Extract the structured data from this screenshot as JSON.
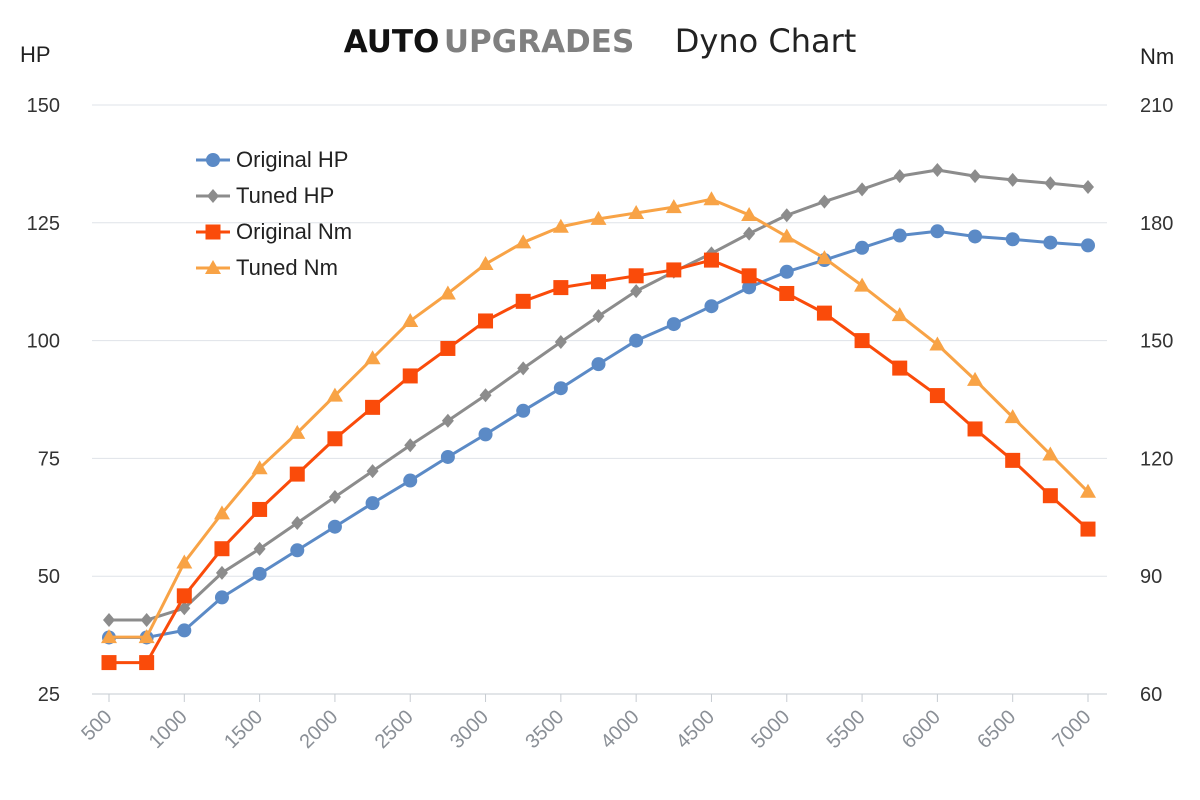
{
  "title": {
    "brand_word1": "AUTO",
    "brand_word2": "UPGRADES",
    "subtitle": "Dyno Chart"
  },
  "chart_data": {
    "type": "line",
    "title": "AUTO UPGRADES Dyno Chart",
    "y_left_label": "HP",
    "y_right_label": "Nm",
    "y_left_lim": [
      25,
      150
    ],
    "y_left_ticks": [
      "25",
      "50",
      "75",
      "100",
      "125",
      "150"
    ],
    "y_right_lim": [
      60,
      210
    ],
    "y_right_ticks": [
      "60",
      "90",
      "120",
      "150",
      "180",
      "210"
    ],
    "x": [
      500,
      750,
      1000,
      1250,
      1500,
      1750,
      2000,
      2250,
      2500,
      2750,
      3000,
      3250,
      3500,
      3750,
      4000,
      4250,
      4500,
      4750,
      5000,
      5250,
      5500,
      5750,
      6000,
      6250,
      6500,
      6750,
      7000
    ],
    "x_tick_labels": [
      "500",
      "1000",
      "1500",
      "2000",
      "2500",
      "3000",
      "3500",
      "4000",
      "4500",
      "5000",
      "5500",
      "6000",
      "6500",
      "7000"
    ],
    "grid": true,
    "legend_position": "top-left",
    "series": [
      {
        "name": "Original HP",
        "axis": "left",
        "marker": "circle",
        "color": "#5b8ac6",
        "values": [
          37,
          37,
          38.5,
          45.5,
          50.5,
          55.5,
          60.5,
          65.5,
          70.3,
          75.3,
          80.1,
          85.1,
          89.9,
          95,
          100,
          103.5,
          107.3,
          111.3,
          114.6,
          117.1,
          119.7,
          122.3,
          123.2,
          122.1,
          121.5,
          120.8,
          120.2
        ]
      },
      {
        "name": "Tuned HP",
        "axis": "left",
        "marker": "diamond",
        "color": "#8c8c8c",
        "values": [
          40.7,
          40.7,
          43.2,
          50.7,
          55.8,
          61.3,
          66.8,
          72.3,
          77.8,
          83,
          88.4,
          94.1,
          99.7,
          105.2,
          110.5,
          114.6,
          118.5,
          122.7,
          126.6,
          129.5,
          132.1,
          134.9,
          136.2,
          134.9,
          134.1,
          133.4,
          132.6
        ]
      },
      {
        "name": "Original Nm",
        "axis": "right",
        "marker": "square",
        "color": "#fa4b0a",
        "values": [
          68,
          68,
          85,
          97,
          107,
          116,
          125,
          133,
          141,
          148,
          155,
          160,
          163.5,
          165,
          166.5,
          168,
          170.5,
          166.5,
          162,
          157,
          150,
          143,
          136,
          127.5,
          119.5,
          110.5,
          102
        ]
      },
      {
        "name": "Tuned Nm",
        "axis": "right",
        "marker": "triangle",
        "color": "#f8a346",
        "values": [
          74.5,
          74.5,
          93.5,
          106,
          117.5,
          126.5,
          136,
          145.5,
          155,
          162,
          169.5,
          175,
          179,
          181,
          182.5,
          184,
          186,
          182,
          176.5,
          171,
          164,
          156.5,
          149,
          140,
          130.5,
          121,
          111.5
        ]
      }
    ]
  }
}
